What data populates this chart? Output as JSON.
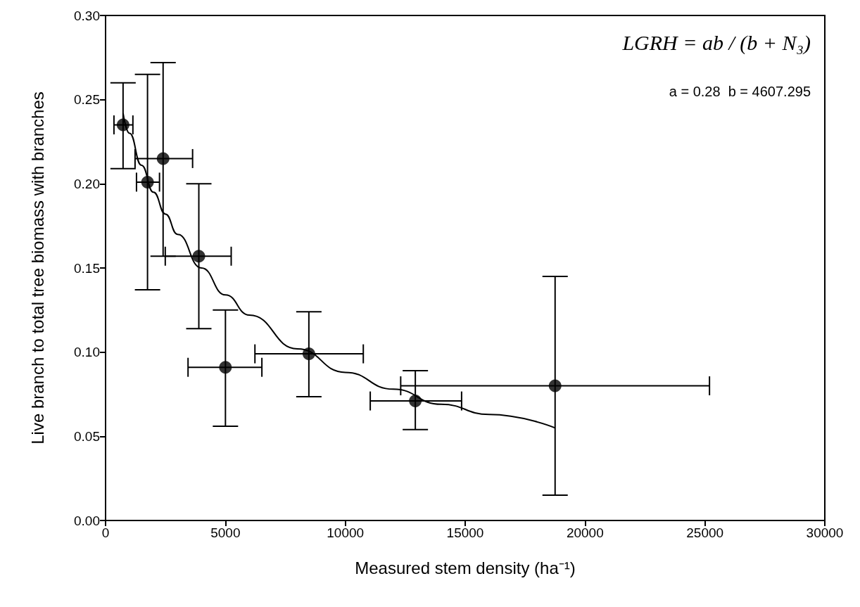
{
  "chart_data": {
    "type": "scatter",
    "xlabel": "Measured stem density (ha⁻¹)",
    "ylabel": "Live branch to total tree biomass with branches",
    "annotations": [
      "LGRH = ab / (b + N₃)",
      "a = 0.28  b = 4607.295"
    ],
    "xlim": [
      0,
      30000
    ],
    "xticks": [
      0,
      5000,
      10000,
      15000,
      20000,
      25000,
      30000
    ],
    "ylim": [
      0,
      0.3
    ],
    "yticks": [
      {
        "value": 0,
        "label": "0.00"
      },
      {
        "value": 0.05,
        "label": "0.05"
      },
      {
        "value": 0.1,
        "label": "0.10"
      },
      {
        "value": 0.15,
        "label": "0.15"
      },
      {
        "value": 0.2,
        "label": "0.20"
      },
      {
        "value": 0.25,
        "label": "0.25"
      },
      {
        "value": 0.3,
        "label": "0.30"
      }
    ],
    "grid": false,
    "series": [
      {
        "color": "#000000",
        "marker": "circle",
        "x": [
          730,
          1750,
          2400,
          3890,
          5000,
          8480,
          12920,
          18750
        ],
        "values": [
          0.235,
          0.201,
          0.215,
          0.157,
          0.091,
          0.099,
          0.071,
          0.08
        ],
        "errors": [
          [
            0.209,
            0.26
          ],
          [
            0.137,
            0.265
          ],
          [
            0.157,
            0.272
          ],
          [
            0.114,
            0.2
          ],
          [
            0.056,
            0.125
          ],
          [
            0.0735,
            0.124
          ],
          [
            0.054,
            0.089
          ],
          [
            0.015,
            0.145
          ]
        ],
        "xerrors": [
          [
            350,
            1140
          ],
          [
            1290,
            2250
          ],
          [
            1230,
            3630
          ],
          [
            2490,
            5240
          ],
          [
            3440,
            6520
          ],
          [
            6230,
            10750
          ],
          [
            11040,
            14850
          ],
          [
            12310,
            25190
          ]
        ]
      },
      {
        "type": "line",
        "color": "#000000",
        "marker": "none",
        "line_style": "solid",
        "x": [
          730,
          1000,
          1500,
          2000,
          2500,
          3000,
          4000,
          5000,
          6000,
          8000,
          10000,
          12000,
          14000,
          16000,
          18750
        ],
        "values": [
          0.242,
          0.23,
          0.211,
          0.195,
          0.182,
          0.17,
          0.15,
          0.134,
          0.122,
          0.102,
          0.088,
          0.078,
          0.069,
          0.063,
          0.055
        ]
      }
    ]
  }
}
